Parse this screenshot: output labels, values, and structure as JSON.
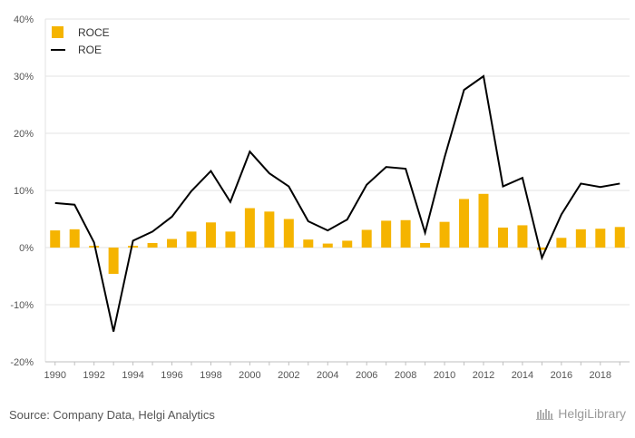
{
  "chart_data": {
    "type": "bar",
    "x": [
      "1990",
      "1991",
      "1992",
      "1993",
      "1994",
      "1995",
      "1996",
      "1997",
      "1998",
      "1999",
      "2000",
      "2001",
      "2002",
      "2003",
      "2004",
      "2005",
      "2006",
      "2007",
      "2008",
      "2009",
      "2010",
      "2011",
      "2012",
      "2013",
      "2014",
      "2015",
      "2016",
      "2017",
      "2018",
      "2019"
    ],
    "x_tick_labels": [
      "1990",
      "1992",
      "1994",
      "1996",
      "1998",
      "2000",
      "2002",
      "2004",
      "2006",
      "2008",
      "2010",
      "2012",
      "2014",
      "2016",
      "2018"
    ],
    "y_tick_labels": [
      "40%",
      "30%",
      "20%",
      "10%",
      "0%",
      "-10%",
      "-20%"
    ],
    "ylim": [
      -20,
      40
    ],
    "grid": true,
    "legend_position": "top-left",
    "series": [
      {
        "name": "ROCE",
        "type": "bar",
        "color": "#F5B400",
        "values": [
          3.0,
          3.2,
          0.3,
          -4.6,
          0.3,
          0.8,
          1.5,
          2.8,
          4.4,
          2.8,
          6.9,
          6.3,
          5.0,
          1.4,
          0.7,
          1.2,
          3.1,
          4.7,
          4.8,
          0.8,
          4.5,
          8.5,
          9.4,
          3.5,
          3.9,
          -0.4,
          1.7,
          3.2,
          3.3,
          3.6
        ]
      },
      {
        "name": "ROE",
        "type": "line",
        "color": "#000000",
        "values": [
          7.8,
          7.5,
          0.9,
          -14.7,
          1.2,
          2.8,
          5.4,
          9.9,
          13.4,
          8.0,
          16.8,
          13.0,
          10.7,
          4.6,
          3.0,
          4.9,
          11.0,
          14.1,
          13.8,
          2.6,
          15.8,
          27.6,
          30.0,
          10.7,
          12.2,
          -1.8,
          5.8,
          11.2,
          10.6,
          11.2
        ]
      }
    ]
  },
  "footer": {
    "source": "Source: Company Data, Helgi Analytics",
    "brand": "HelgiLibrary"
  }
}
